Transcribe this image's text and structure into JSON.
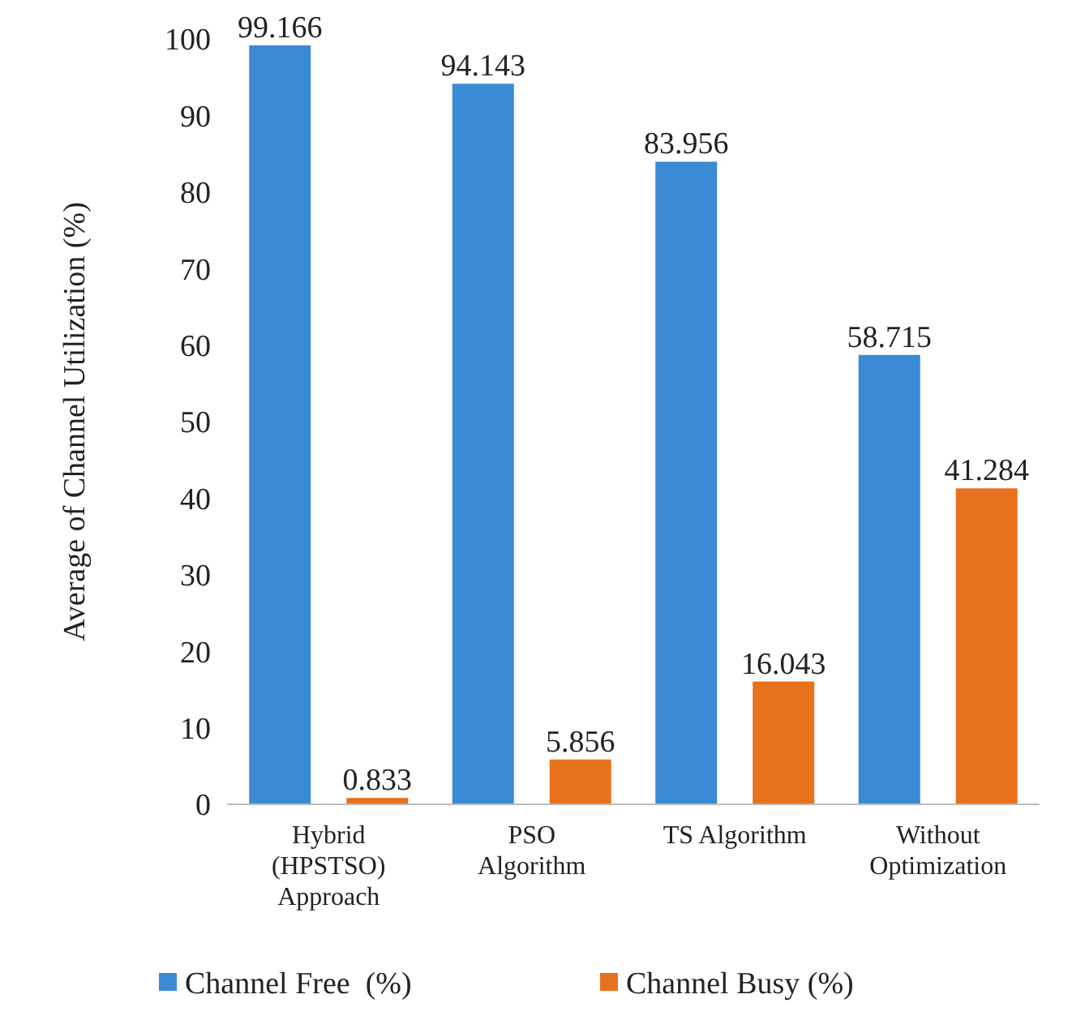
{
  "chart_data": {
    "type": "bar",
    "ylabel": "Average of Channel Utilization (%)",
    "categories": [
      "Hybrid (HPSTSO) Approach",
      "PSO Algorithm",
      "TS Algorithm",
      "Without Optimization"
    ],
    "series": [
      {
        "name": "Channel Free  (%)",
        "color": "#3a8ad6",
        "values": [
          99.166,
          94.143,
          83.956,
          58.715
        ]
      },
      {
        "name": "Channel Busy (%)",
        "color": "#e8711d",
        "values": [
          0.833,
          5.856,
          16.043,
          41.284
        ]
      }
    ],
    "ylim": [
      0,
      100
    ],
    "yticks": [
      0,
      10,
      20,
      30,
      40,
      50,
      60,
      70,
      80,
      90,
      100
    ],
    "data_labels": true,
    "legend": "bottom",
    "grid": false
  }
}
